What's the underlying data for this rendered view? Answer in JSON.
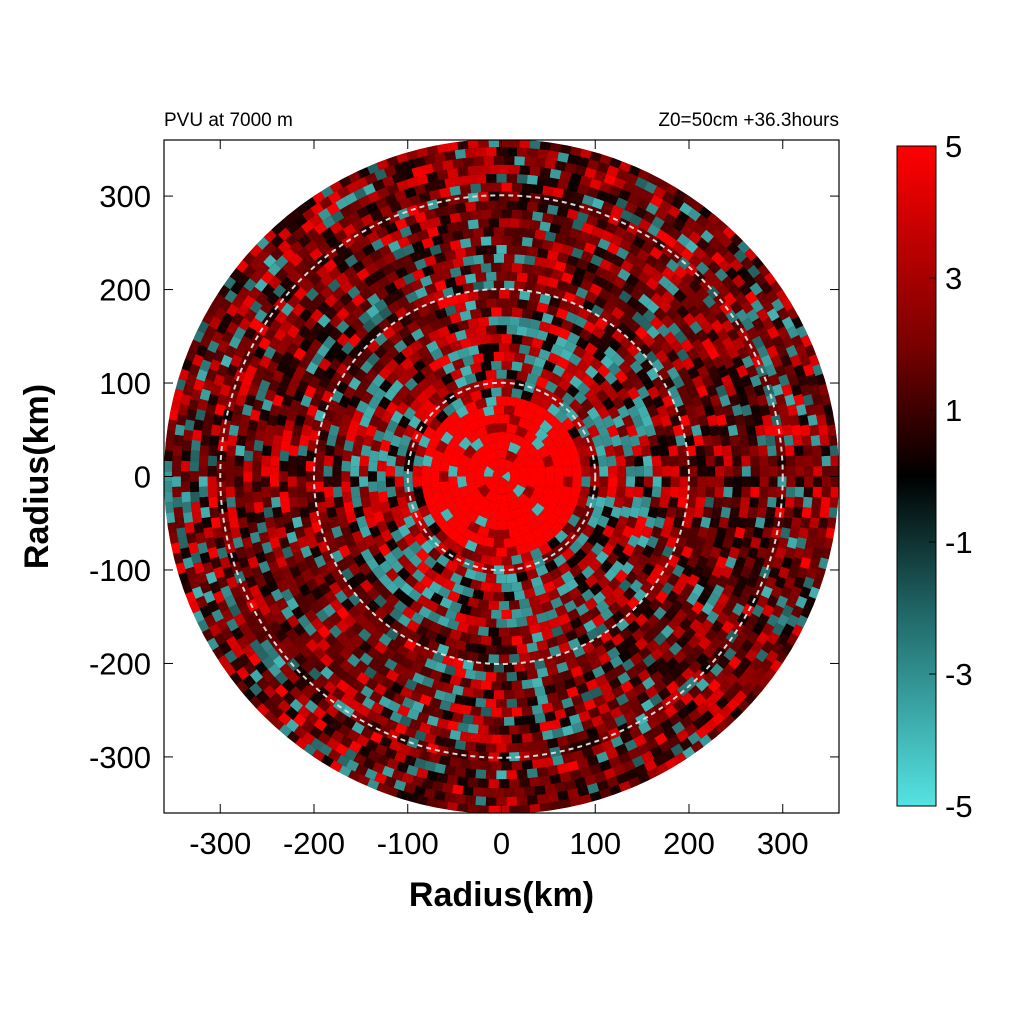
{
  "header": {
    "left": "PVU at  7000 m",
    "right": "Z0=50cm  +36.3hours"
  },
  "chart_data": {
    "type": "heatmap",
    "projection": "polar field plotted on cartesian axes",
    "field": "PVU",
    "xlabel": "Radius(km)",
    "ylabel": "Radius(km)",
    "xlim": [
      -360,
      360
    ],
    "ylim": [
      -360,
      360
    ],
    "xticks": [
      -300,
      -200,
      -100,
      0,
      100,
      200,
      300
    ],
    "yticks": [
      300,
      200,
      100,
      0,
      -100,
      -200,
      -300
    ],
    "domain_radius_km": 360,
    "reference_circles_km": [
      100,
      200,
      300
    ],
    "reference_circle_style": "dashed light gray",
    "grid": false,
    "colorbar": {
      "min": -5,
      "max": 5,
      "tick_labels": [
        "5",
        "3",
        "1",
        "-1",
        "-3",
        "-5"
      ],
      "tick_values": [
        5,
        3,
        1,
        -1,
        -3,
        -5
      ],
      "colors": {
        "low": "#55e3e3",
        "mid": "#000000",
        "high": "#ff0000"
      },
      "placement": "right"
    },
    "field_description": {
      "core_radius_km": 100,
      "core_value": 5,
      "dominant_value": 2,
      "negative_patches_value": -4
    }
  }
}
